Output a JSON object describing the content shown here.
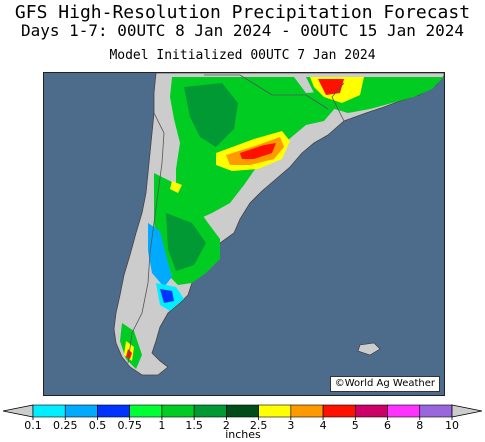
{
  "title": {
    "line1": "GFS High-Resolution Precipitation Forecast",
    "line2": "Days 1-7: 00UTC 8 Jan 2024 - 00UTC 15 Jan 2024",
    "line3": "Model Initialized 00UTC 7 Jan 2024"
  },
  "credit": "©World Ag Weather",
  "legend": {
    "unit_label": "inches",
    "tick_labels": [
      "0.1",
      "0.25",
      "0.5",
      "0.75",
      "1",
      "1.5",
      "2",
      "2.5",
      "3",
      "4",
      "5",
      "6",
      "8",
      "10"
    ],
    "bin_colors": [
      "#00eeff",
      "#00aaff",
      "#0033ff",
      "#00ff33",
      "#00cc22",
      "#009933",
      "#004d1a",
      "#ffff00",
      "#ff9900",
      "#ff1100",
      "#cc0066",
      "#ff33ff",
      "#9966dd"
    ],
    "end_colors": [
      "#cccccc",
      "#cccccc"
    ]
  },
  "map_colors": {
    "ocean": "#4d6c8b",
    "land_dry": "#cccccc",
    "border": "#555555"
  }
}
